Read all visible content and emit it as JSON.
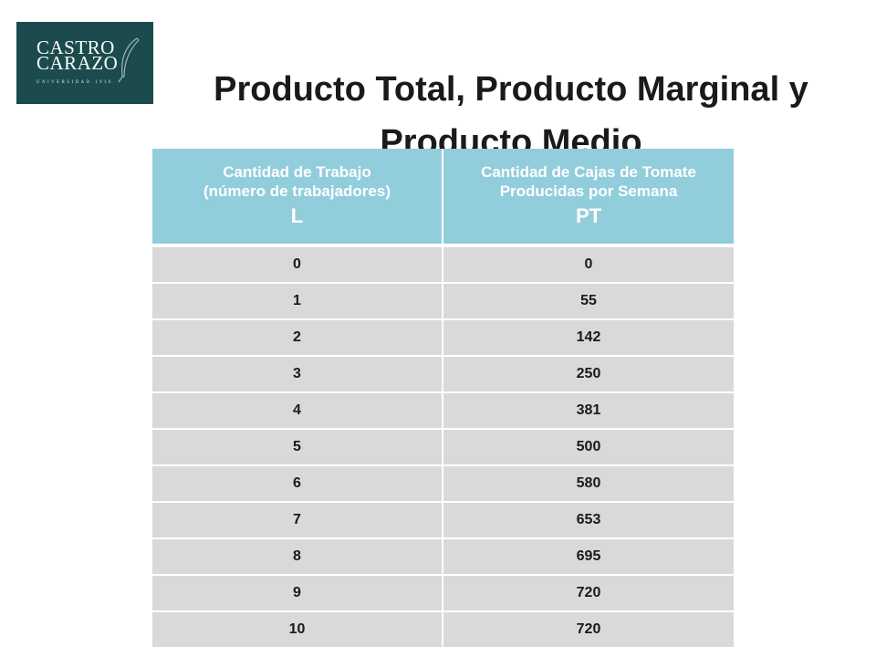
{
  "logo": {
    "name": "CASTRO\nCARAZO",
    "sub": "UNIVERSIDAD 1936"
  },
  "title": "Producto Total, Producto Marginal y Producto Medio",
  "table": {
    "headers": [
      {
        "line1": "Cantidad de Trabajo",
        "line2": "(número de trabajadores)",
        "symbol": "L"
      },
      {
        "line1": "Cantidad de Cajas de Tomate",
        "line2": "Producidas por Semana",
        "symbol": "PT"
      }
    ],
    "rows": [
      {
        "l": "0",
        "pt": "0"
      },
      {
        "l": "1",
        "pt": "55"
      },
      {
        "l": "2",
        "pt": "142"
      },
      {
        "l": "3",
        "pt": "250"
      },
      {
        "l": "4",
        "pt": "381"
      },
      {
        "l": "5",
        "pt": "500"
      },
      {
        "l": "6",
        "pt": "580"
      },
      {
        "l": "7",
        "pt": "653"
      },
      {
        "l": "8",
        "pt": "695"
      },
      {
        "l": "9",
        "pt": "720"
      },
      {
        "l": "10",
        "pt": "720"
      }
    ]
  },
  "colors": {
    "header_bg": "#92cddc",
    "row_bg": "#d9d9d9",
    "logo_bg": "#1b4b4c"
  }
}
